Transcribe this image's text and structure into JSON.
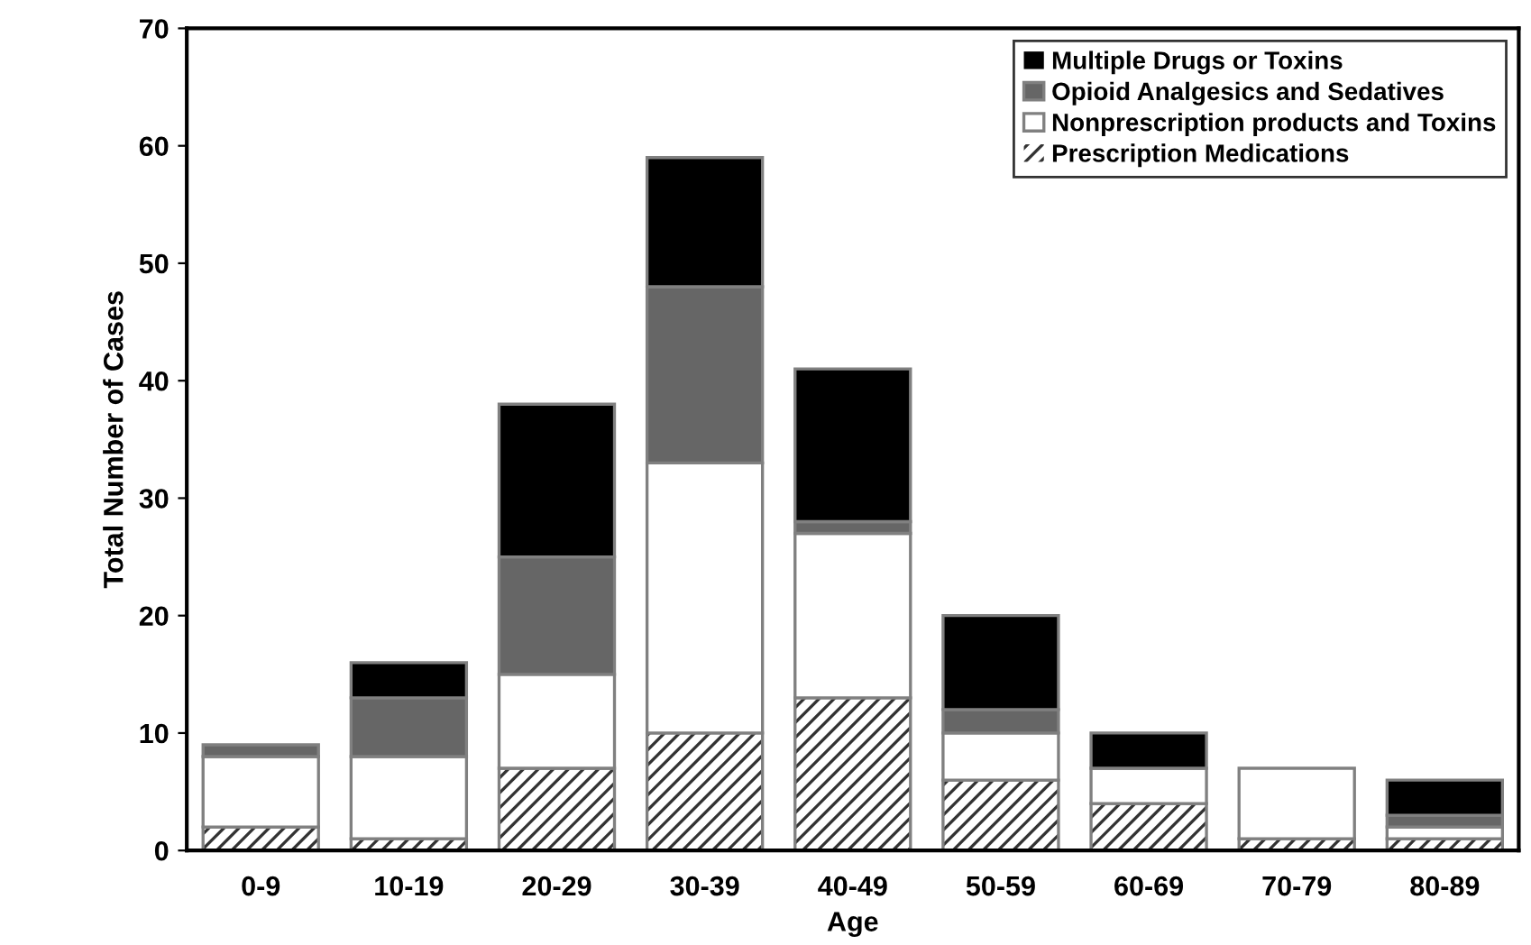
{
  "chart_data": {
    "type": "bar",
    "stacked": true,
    "xlabel": "Age",
    "ylabel": "Total Number of Cases",
    "categories": [
      "0-9",
      "10-19",
      "20-29",
      "30-39",
      "40-49",
      "50-59",
      "60-69",
      "70-79",
      "80-89"
    ],
    "series": [
      {
        "name": "Prescription Medications",
        "color": "#333333",
        "values": [
          2,
          1,
          7,
          10,
          13,
          6,
          4,
          1,
          1
        ]
      },
      {
        "name": "Nonprescription products and Toxins",
        "color": "#ffffff",
        "values": [
          6,
          7,
          8,
          23,
          14,
          4,
          3,
          6,
          1
        ]
      },
      {
        "name": "Opioid Analgesics and Sedatives",
        "color": "#666666",
        "values": [
          1,
          5,
          10,
          15,
          1,
          2,
          0,
          0,
          1
        ]
      },
      {
        "name": "Multiple Drugs or Toxins",
        "color": "#000000",
        "values": [
          0,
          3,
          13,
          11,
          13,
          8,
          3,
          0,
          3
        ]
      }
    ],
    "ylim": [
      0,
      70
    ],
    "yticks": [
      0,
      10,
      20,
      30,
      40,
      50,
      60,
      70
    ],
    "grid": false,
    "legend": "top right"
  }
}
